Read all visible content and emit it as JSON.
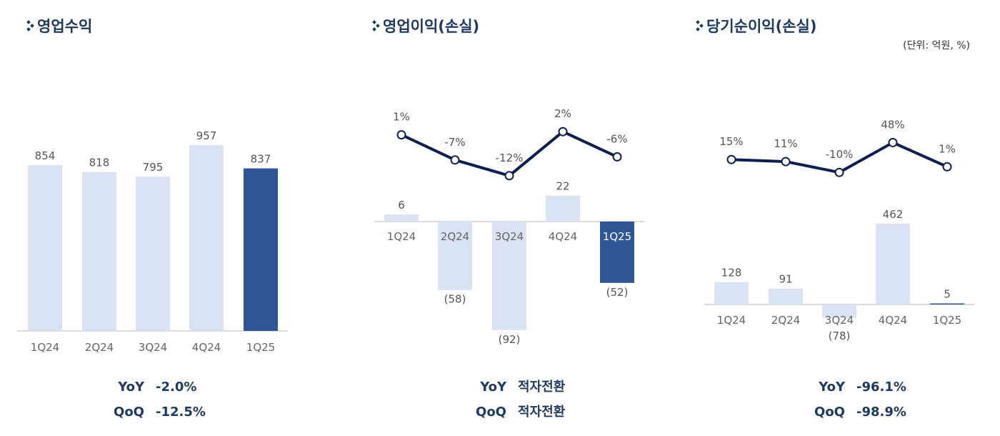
{
  "unit_note": "(단위: 억원, %)",
  "colors": {
    "bar": "#dae3f3",
    "highlight": "#2f5597",
    "line": "#0d1f4f",
    "title": "#1f3a60"
  },
  "chart_data": [
    {
      "type": "bar",
      "title": "영업수익",
      "categories": [
        "1Q24",
        "2Q24",
        "3Q24",
        "4Q24",
        "1Q25"
      ],
      "values": [
        854,
        818,
        795,
        957,
        837
      ],
      "highlight_index": 4,
      "footer": [
        {
          "label": "YoY",
          "value": "-2.0%"
        },
        {
          "label": "QoQ",
          "value": "-12.5%"
        }
      ]
    },
    {
      "type": "bar+line",
      "title": "영업이익(손실)",
      "categories": [
        "1Q24",
        "2Q24",
        "3Q24",
        "4Q24",
        "1Q25"
      ],
      "values": [
        6,
        -58,
        -92,
        22,
        -52
      ],
      "margin_pct": [
        1,
        -7,
        -12,
        2,
        -6
      ],
      "highlight_index": 4,
      "footer": [
        {
          "label": "YoY",
          "value": "적자전환"
        },
        {
          "label": "QoQ",
          "value": "적자전환"
        }
      ]
    },
    {
      "type": "bar+line",
      "title": "당기순이익(손실)",
      "categories": [
        "1Q24",
        "2Q24",
        "3Q24",
        "4Q24",
        "1Q25"
      ],
      "values": [
        128,
        91,
        -78,
        462,
        5
      ],
      "margin_pct": [
        15,
        11,
        -10,
        48,
        1
      ],
      "highlight_index": 4,
      "footer": [
        {
          "label": "YoY",
          "value": "-96.1%"
        },
        {
          "label": "QoQ",
          "value": "-98.9%"
        }
      ]
    }
  ]
}
